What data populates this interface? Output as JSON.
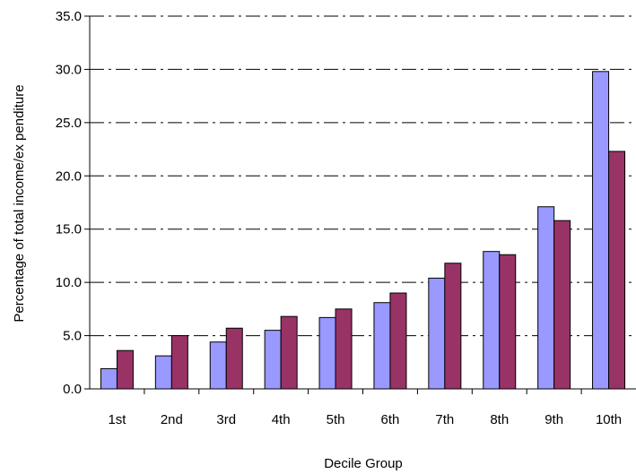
{
  "chart_data": {
    "type": "bar",
    "title": "",
    "xlabel": "Decile Group",
    "ylabel": "Percentage of total income/ex penditure",
    "ylim": [
      0,
      35
    ],
    "yticks": [
      "0.0",
      "5.0",
      "10.0",
      "15.0",
      "20.0",
      "25.0",
      "30.0",
      "35.0"
    ],
    "categories": [
      "1st",
      "2nd",
      "3rd",
      "4th",
      "5th",
      "6th",
      "7th",
      "8th",
      "9th",
      "10th"
    ],
    "series": [
      {
        "color": "#9999ff",
        "values": [
          1.9,
          3.1,
          4.4,
          5.5,
          6.7,
          8.1,
          10.4,
          12.9,
          17.1,
          29.8
        ]
      },
      {
        "color": "#993366",
        "values": [
          3.6,
          5.0,
          5.7,
          6.8,
          7.5,
          9.0,
          11.8,
          12.6,
          15.8,
          22.3
        ]
      }
    ],
    "grid": "dash-dot horizontal",
    "legend": "none"
  }
}
